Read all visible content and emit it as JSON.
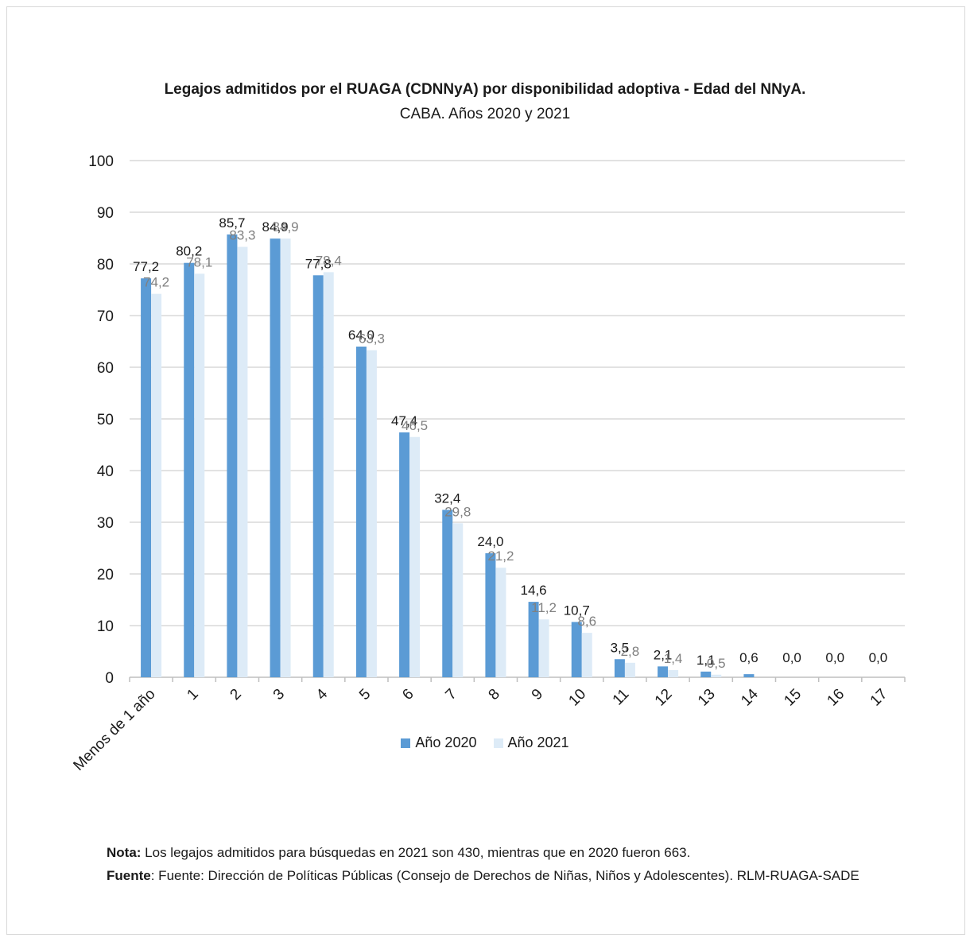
{
  "title": "Legajos admitidos por el RUAGA (CDNNyA) por disponibilidad adoptiva - Edad del NNyA.",
  "subtitle": "CABA. Años 2020 y 2021",
  "colors": {
    "series_2020": "#5b9bd5",
    "series_2021": "#ddebf7",
    "label_2020": "#1a1a1a",
    "label_2021": "#808080",
    "grid": "#d9d9d9"
  },
  "chart_data": {
    "type": "bar",
    "categories": [
      "Menos de 1 año",
      "1",
      "2",
      "3",
      "4",
      "5",
      "6",
      "7",
      "8",
      "9",
      "10",
      "11",
      "12",
      "13",
      "14",
      "15",
      "16",
      "17"
    ],
    "series": [
      {
        "name": "Año 2020",
        "values": [
          77.2,
          80.2,
          85.7,
          84.9,
          77.8,
          64.0,
          47.4,
          32.4,
          24.0,
          14.6,
          10.7,
          3.5,
          2.1,
          1.1,
          0.6,
          0.0,
          0.0,
          0.0
        ],
        "labels": [
          "77,2",
          "80,2",
          "85,7",
          "84,9",
          "77,8",
          "64,0",
          "47,4",
          "32,4",
          "24,0",
          "14,6",
          "10,7",
          "3,5",
          "2,1",
          "1,1",
          "0,6",
          "0,0",
          "0,0",
          "0,0"
        ]
      },
      {
        "name": "Año 2021",
        "values": [
          74.2,
          78.1,
          83.3,
          84.9,
          78.4,
          63.3,
          46.5,
          29.8,
          21.2,
          11.2,
          8.6,
          2.8,
          1.4,
          0.5,
          0.0,
          0.0,
          0.0,
          0.0
        ],
        "labels": [
          "74,2",
          "78,1",
          "83,3",
          "84,9",
          "78,4",
          "63,3",
          "46,5",
          "29,8",
          "21,2",
          "11,2",
          "8,6",
          "2,8",
          "1,4",
          "0,5",
          "",
          "",
          "",
          ""
        ]
      }
    ],
    "yticks": [
      "0",
      "10",
      "20",
      "30",
      "40",
      "50",
      "60",
      "70",
      "80",
      "90",
      "100"
    ],
    "ylim": [
      0,
      100
    ],
    "grid": true,
    "legend": "bottom"
  },
  "notes": {
    "nota_label": "Nota:",
    "nota_text": " Los legajos admitidos para búsquedas en  2021  son 430, mientras que en 2020 fueron 663.",
    "fuente_label": "Fuente",
    "fuente_text": ": Fuente: Dirección de Políticas Públicas  (Consejo de Derechos de Niñas, Niños y Adolescentes). RLM-RUAGA-SADE"
  }
}
